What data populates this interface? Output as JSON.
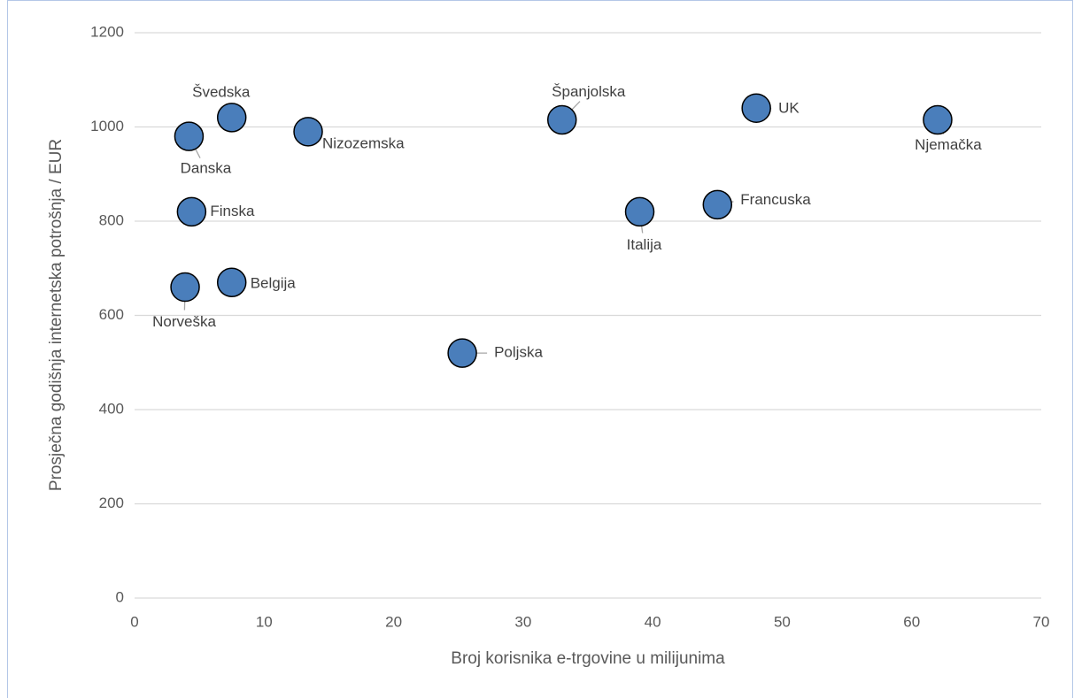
{
  "chart_data": {
    "type": "scatter",
    "x_label": "Broj korisnika e-trgovine u milijunima",
    "y_label": "Prosječna godišnja internetska potrošnja / EUR",
    "series": [
      {
        "color": "#4a7ebb",
        "labels": [
          "Švedska",
          "Danska",
          "Nizozemska",
          "Finska",
          "Norveška",
          "Belgija",
          "Poljska",
          "Španjolska",
          "Italija",
          "Francuska",
          "UK",
          "Njemačka"
        ],
        "x": [
          7.5,
          4.2,
          13.4,
          4.4,
          3.9,
          7.5,
          25.3,
          33,
          39,
          45,
          48,
          62
        ],
        "values": [
          1020,
          980,
          990,
          820,
          660,
          670,
          520,
          1015,
          820,
          835,
          1040,
          1015
        ]
      }
    ],
    "xlim": [
      0,
      70
    ],
    "xticks": [
      0,
      10,
      20,
      30,
      40,
      50,
      60,
      70
    ],
    "ylim": [
      0,
      1200
    ],
    "yticks": [
      0,
      200,
      400,
      600,
      800,
      1000,
      1200
    ],
    "grid": true
  }
}
